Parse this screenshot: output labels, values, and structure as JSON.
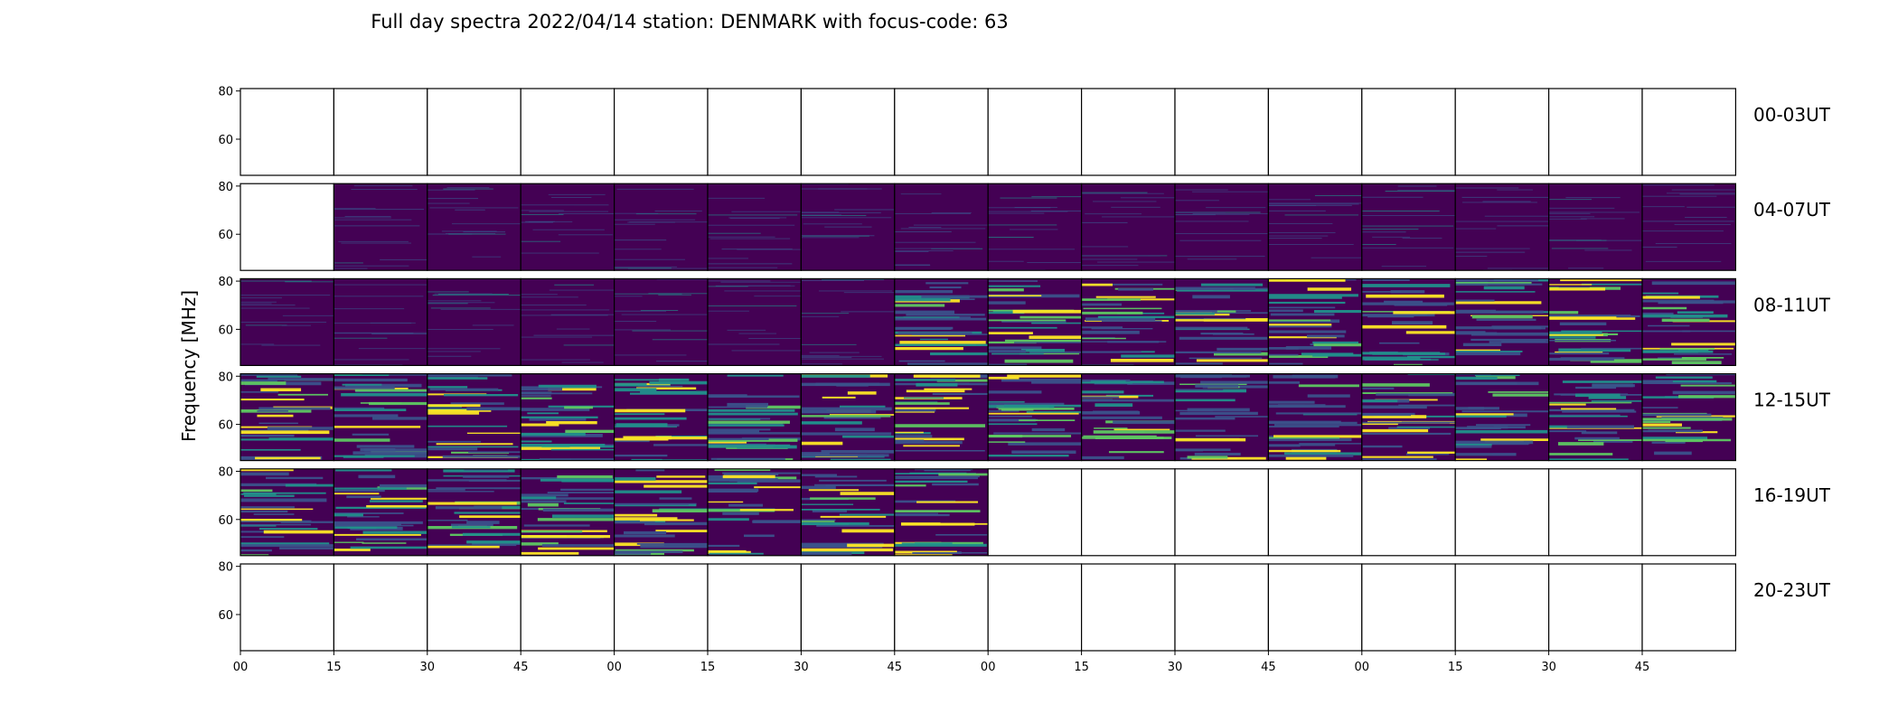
{
  "chart_data": {
    "type": "heatmap",
    "title": "Full day spectra 2022/04/14 station: DENMARK with focus-code: 63",
    "ylabel": "Frequency [MHz]",
    "ylim": [
      45,
      81
    ],
    "yticks": [
      "80",
      "60"
    ],
    "xticks": [
      "00",
      "15",
      "30",
      "45",
      "00",
      "15",
      "30",
      "45",
      "00",
      "15",
      "30",
      "45",
      "00",
      "15",
      "30",
      "45"
    ],
    "colormap": [
      "#440154",
      "#3b528b",
      "#21918c",
      "#5ec962",
      "#fde725"
    ],
    "rows": [
      {
        "label": "00-03UT",
        "panels": [
          "e",
          "e",
          "e",
          "e",
          "e",
          "e",
          "e",
          "e",
          "e",
          "e",
          "e",
          "e",
          "e",
          "e",
          "e",
          "e"
        ]
      },
      {
        "label": "04-07UT",
        "panels": [
          "e",
          "q",
          "q",
          "q",
          "q",
          "q",
          "q",
          "q",
          "q",
          "q",
          "q",
          "q",
          "q",
          "q",
          "q",
          "q"
        ]
      },
      {
        "label": "08-11UT",
        "panels": [
          "q",
          "q",
          "q",
          "q",
          "q",
          "q",
          "q",
          "a",
          "a",
          "a",
          "a",
          "a",
          "a",
          "a",
          "a",
          "a"
        ]
      },
      {
        "label": "12-15UT",
        "panels": [
          "a",
          "a",
          "a",
          "a",
          "a",
          "a",
          "a",
          "a",
          "a",
          "a",
          "a",
          "a",
          "a",
          "a",
          "a",
          "a"
        ]
      },
      {
        "label": "16-19UT",
        "panels": [
          "a",
          "a",
          "a",
          "a",
          "a",
          "a",
          "a",
          "a",
          "e",
          "e",
          "e",
          "e",
          "e",
          "e",
          "e",
          "e"
        ]
      },
      {
        "label": "20-23UT",
        "panels": [
          "e",
          "e",
          "e",
          "e",
          "e",
          "e",
          "e",
          "e",
          "e",
          "e",
          "e",
          "e",
          "e",
          "e",
          "e",
          "e"
        ]
      }
    ]
  }
}
